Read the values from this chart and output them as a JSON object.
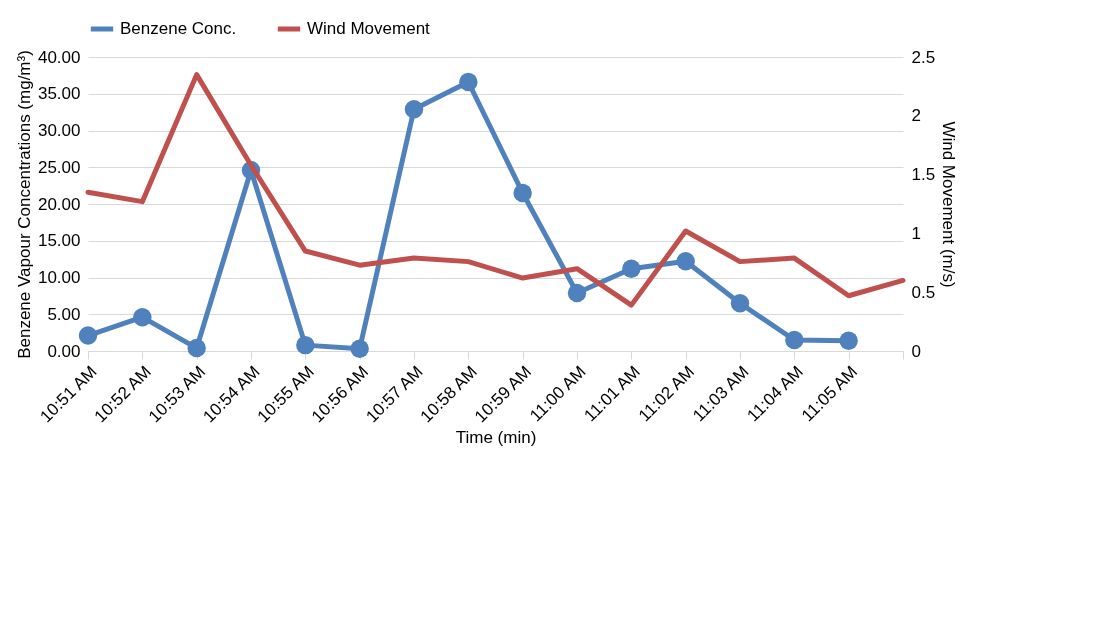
{
  "chart_data": {
    "type": "line",
    "xlabel": "Time (min)",
    "ylabel": "Benzene Vapour Concentrations (mg/m³)",
    "y2label": "Wind Movement (m/s)",
    "categories": [
      "10:51 AM",
      "10:52 AM",
      "10:53 AM",
      "10:54 AM",
      "10:55 AM",
      "10:56 AM",
      "10:57 AM",
      "10:58 AM",
      "10:59 AM",
      "11:00 AM",
      "11:01 AM",
      "11:02 AM",
      "11:03 AM",
      "11:04 AM",
      "11:05 AM",
      null
    ],
    "series": [
      {
        "name": "Benzene Conc.",
        "color": "#4f81bd",
        "marker": "circle",
        "values": [
          2.1,
          4.6,
          0.4,
          24.6,
          0.8,
          0.3,
          32.9,
          36.6,
          21.5,
          7.9,
          11.2,
          12.2,
          6.5,
          1.5,
          1.4,
          null
        ]
      },
      {
        "name": "Wind Movement",
        "color": "#c0504d",
        "axis": "y2",
        "marker": "none",
        "values": [
          1.35,
          1.27,
          2.35,
          1.58,
          0.85,
          0.73,
          0.79,
          0.76,
          0.62,
          0.7,
          0.39,
          1.02,
          0.76,
          0.79,
          0.47,
          0.6
        ]
      }
    ],
    "ylim": [
      0,
      40
    ],
    "yticks": [
      {
        "value": 0,
        "label": "0.00"
      },
      {
        "value": 5,
        "label": "5.00"
      },
      {
        "value": 10,
        "label": "10.00"
      },
      {
        "value": 15,
        "label": "15.00"
      },
      {
        "value": 20,
        "label": "20.00"
      },
      {
        "value": 25,
        "label": "25.00"
      },
      {
        "value": 30,
        "label": "30.00"
      },
      {
        "value": 35,
        "label": "35.00"
      },
      {
        "value": 40,
        "label": "40.00"
      }
    ],
    "y2lim": [
      0,
      2.5
    ],
    "y2ticks": [
      0,
      0.5,
      1,
      1.5,
      2,
      2.5
    ],
    "grid": "y",
    "legend": "top",
    "line_style": "solid"
  }
}
